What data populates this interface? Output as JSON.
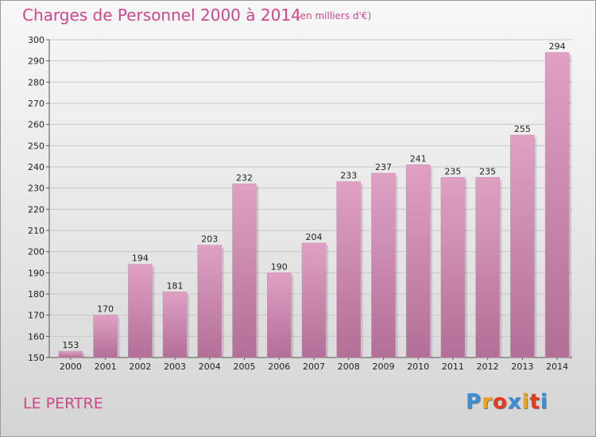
{
  "chart_data": {
    "type": "bar",
    "title": "Charges de Personnel 2000 à 2014",
    "subtitle": "(en milliers d'€)",
    "categories": [
      "2000",
      "2001",
      "2002",
      "2003",
      "2004",
      "2005",
      "2006",
      "2007",
      "2008",
      "2009",
      "2010",
      "2011",
      "2012",
      "2013",
      "2014"
    ],
    "values": [
      153,
      170,
      194,
      181,
      203,
      232,
      190,
      204,
      233,
      237,
      241,
      235,
      235,
      255,
      294
    ],
    "ylim": [
      150,
      300
    ],
    "yticks": [
      150,
      160,
      170,
      180,
      190,
      200,
      210,
      220,
      230,
      240,
      250,
      260,
      270,
      280,
      290,
      300
    ],
    "grid": true,
    "bar_color": "#e0a0c4",
    "bar_color_dark": "#b26f97"
  },
  "place_name": "LE PERTRE",
  "logo": {
    "text": "Proxiti",
    "letters": [
      "P",
      "r",
      "o",
      "x",
      "i",
      "t",
      "i"
    ],
    "colors": [
      "#3a8fd8",
      "#f0a020",
      "#e83a1e",
      "#3a8fd8",
      "#f0a020",
      "#e83a1e",
      "#3a8fd8"
    ]
  }
}
